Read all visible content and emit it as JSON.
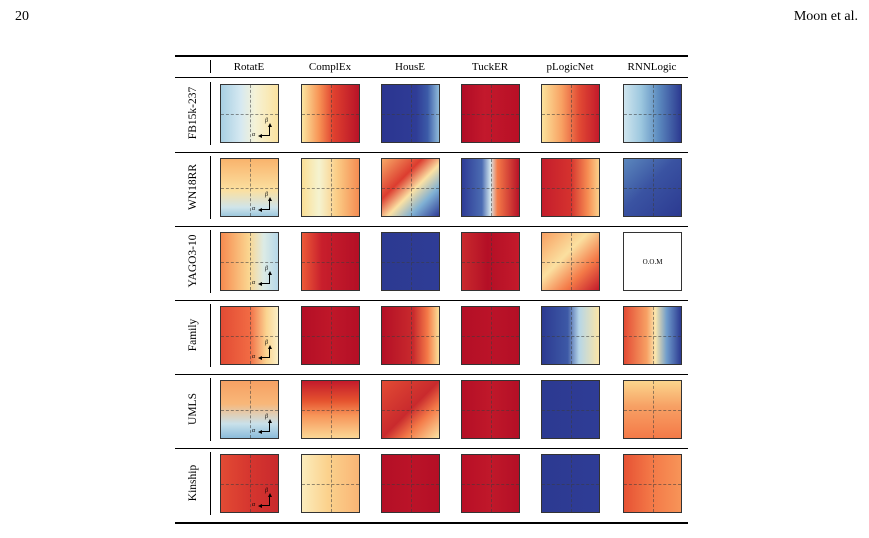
{
  "page": {
    "number": "20",
    "running_head": "Moon et al."
  },
  "figure": {
    "columns": [
      "RotatE",
      "ComplEx",
      "HousE",
      "TuckER",
      "pLogicNet",
      "RNNLogic"
    ],
    "rows": [
      "FB15k-237",
      "WN18RR",
      "YAGO3-10",
      "Family",
      "UMLS",
      "Kinship"
    ],
    "axis_labels": {
      "alpha": "α",
      "beta": "β"
    },
    "oom_text": "O.O.M",
    "colors": {
      "deep_red": "#b50f26",
      "orange": "#f47a48",
      "light_yellow": "#fbe6a0",
      "light_blue": "#bedcea",
      "deep_blue": "#2f3c96"
    },
    "panels": [
      [
        {
          "grad": "linear-gradient(90deg,#a8cfe3 0%,#d6e9f1 35%,#f5f2d6 60%,#fce3a0 100%)"
        },
        {
          "grad": "linear-gradient(90deg,#fbe6a0 0%,#f79355 30%,#e0412f 55%,#b81328 100%)"
        },
        {
          "grad": "linear-gradient(90deg,#2b3590 0%,#2f3c96 60%,#3c5ba8 80%,#8fbbda 100%)"
        },
        {
          "grad": "linear-gradient(90deg,#b10c26 0%,#c3192c 40%,#b80f26 100%)"
        },
        {
          "grad": "linear-gradient(90deg,#fbe39b 0%,#f8a062 35%,#e24b34 65%,#c31a2b 100%)"
        },
        {
          "grad": "linear-gradient(90deg,#cfe5ee 0%,#9cc7df 30%,#5d8cc0 60%,#2c3a91 100%)"
        }
      ],
      [
        {
          "grad": "linear-gradient(180deg,#f9b36c 0%,#fbe0a0 55%,#cfe4ea 85%,#9ec8de 100%)"
        },
        {
          "grad": "linear-gradient(90deg,#fbdf96 0%,#f5f3d0 30%,#fbcf88 60%,#f58c52 100%)"
        },
        {
          "grad": "linear-gradient(135deg,#f7a866 0%,#dc3c2f 35%,#fbe1a3 55%,#7fb0d4 75%,#2f3c96 100%)"
        },
        {
          "grad": "linear-gradient(90deg,#2f3c96 0%,#4b6cb2 35%,#d3e7ee 50%,#f47a48 62%,#b81328 100%)"
        },
        {
          "grad": "linear-gradient(90deg,#c41d2c 0%,#d5322e 50%,#f68c52 80%,#fbd08a 100%)"
        },
        {
          "grad": "linear-gradient(135deg,#5b87bd 0%,#3a53a2 45%,#2c3a91 100%)"
        }
      ],
      [
        {
          "grad": "linear-gradient(90deg,#f68b50 0%,#fbd791 50%,#dcebe6 75%,#b7d8e8 100%)"
        },
        {
          "grad": "linear-gradient(90deg,#ec5a38 0%,#c81f2c 35%,#b40f26 100%)"
        },
        {
          "grad": "linear-gradient(90deg,#2c3a91 0%,#2f3c96 100%)"
        },
        {
          "grad": "linear-gradient(90deg,#c82a2d 0%,#b40f26 45%,#c31a2b 100%)"
        },
        {
          "grad": "linear-gradient(135deg,#f8a062 0%,#fbe0a0 40%,#f47a48 70%,#c31a2b 100%)"
        },
        {
          "oom": true
        }
      ],
      [
        {
          "grad": "linear-gradient(90deg,#e24b34 0%,#f16a43 50%,#fbd591 80%,#fbefc6 100%)"
        },
        {
          "grad": "linear-gradient(90deg,#b40f26 0%,#bf1729 50%,#b40f26 100%)"
        },
        {
          "grad": "linear-gradient(90deg,#b40f26 0%,#c92a2d 55%,#f47a48 80%,#fbdf98 100%)"
        },
        {
          "grad": "linear-gradient(90deg,#b40f26 0%,#bb1328 50%,#b40f26 100%)"
        },
        {
          "grad": "linear-gradient(90deg,#2c3a91 0%,#3d59a6 45%,#b6d6e8 65%,#fbe5a7 100%)"
        },
        {
          "grad": "linear-gradient(90deg,#e34b34 0%,#f7a064 40%,#fbe7ad 55%,#6f9ccb 75%,#2c3a91 100%)"
        }
      ],
      [
        {
          "grad": "linear-gradient(180deg,#f6a063 0%,#f8b779 40%,#c9e1ea 75%,#8cbcdb 100%)"
        },
        {
          "grad": "linear-gradient(180deg,#c31a2b 0%,#e5532f 35%,#f79458 60%,#fbd795 100%)"
        },
        {
          "grad": "linear-gradient(135deg,#e24b34 0%,#c92a2d 50%,#f47a48 70%,#fbe3a3 100%)"
        },
        {
          "grad": "linear-gradient(90deg,#b40f26 0%,#c0182a 50%,#b40f26 100%)"
        },
        {
          "grad": "linear-gradient(90deg,#2c3a91 0%,#2f3c96 100%)"
        },
        {
          "grad": "linear-gradient(180deg,#fbd58c 0%,#f7a064 45%,#f47a48 100%)"
        }
      ],
      [
        {
          "grad": "linear-gradient(90deg,#e24b34 0%,#d6362f 50%,#c92a2d 100%)"
        },
        {
          "grad": "linear-gradient(90deg,#fbecbc 0%,#fbd28d 45%,#f9b575 100%)"
        },
        {
          "grad": "linear-gradient(90deg,#b40f26 0%,#bb1328 50%,#b40f26 100%)"
        },
        {
          "grad": "linear-gradient(90deg,#b80f26 0%,#c0182a 50%,#b40f26 100%)"
        },
        {
          "grad": "linear-gradient(90deg,#2c3a91 0%,#2f3c96 100%)"
        },
        {
          "grad": "linear-gradient(90deg,#e65234 0%,#f47a48 50%,#f79458 100%)"
        }
      ]
    ]
  }
}
